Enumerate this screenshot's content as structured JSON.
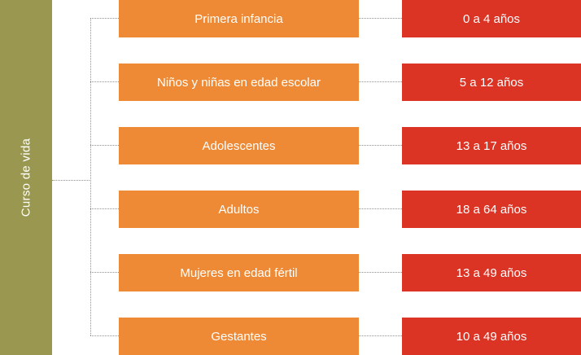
{
  "root": {
    "label": "Curso de vida"
  },
  "rows": [
    {
      "category": "Primera infancia",
      "age": "0 a 4 años"
    },
    {
      "category": "Niños y niñas en edad escolar",
      "age": "5 a 12 años"
    },
    {
      "category": "Adolescentes",
      "age": "13 a 17 años"
    },
    {
      "category": "Adultos",
      "age": "18 a 64 años"
    },
    {
      "category": "Mujeres en edad fértil",
      "age": "13 a 49 años"
    },
    {
      "category": "Gestantes",
      "age": "10 a 49 años"
    }
  ],
  "colors": {
    "root": "#9a9750",
    "category": "#ee8a35",
    "age": "#db3324",
    "connector": "#9a9750"
  }
}
